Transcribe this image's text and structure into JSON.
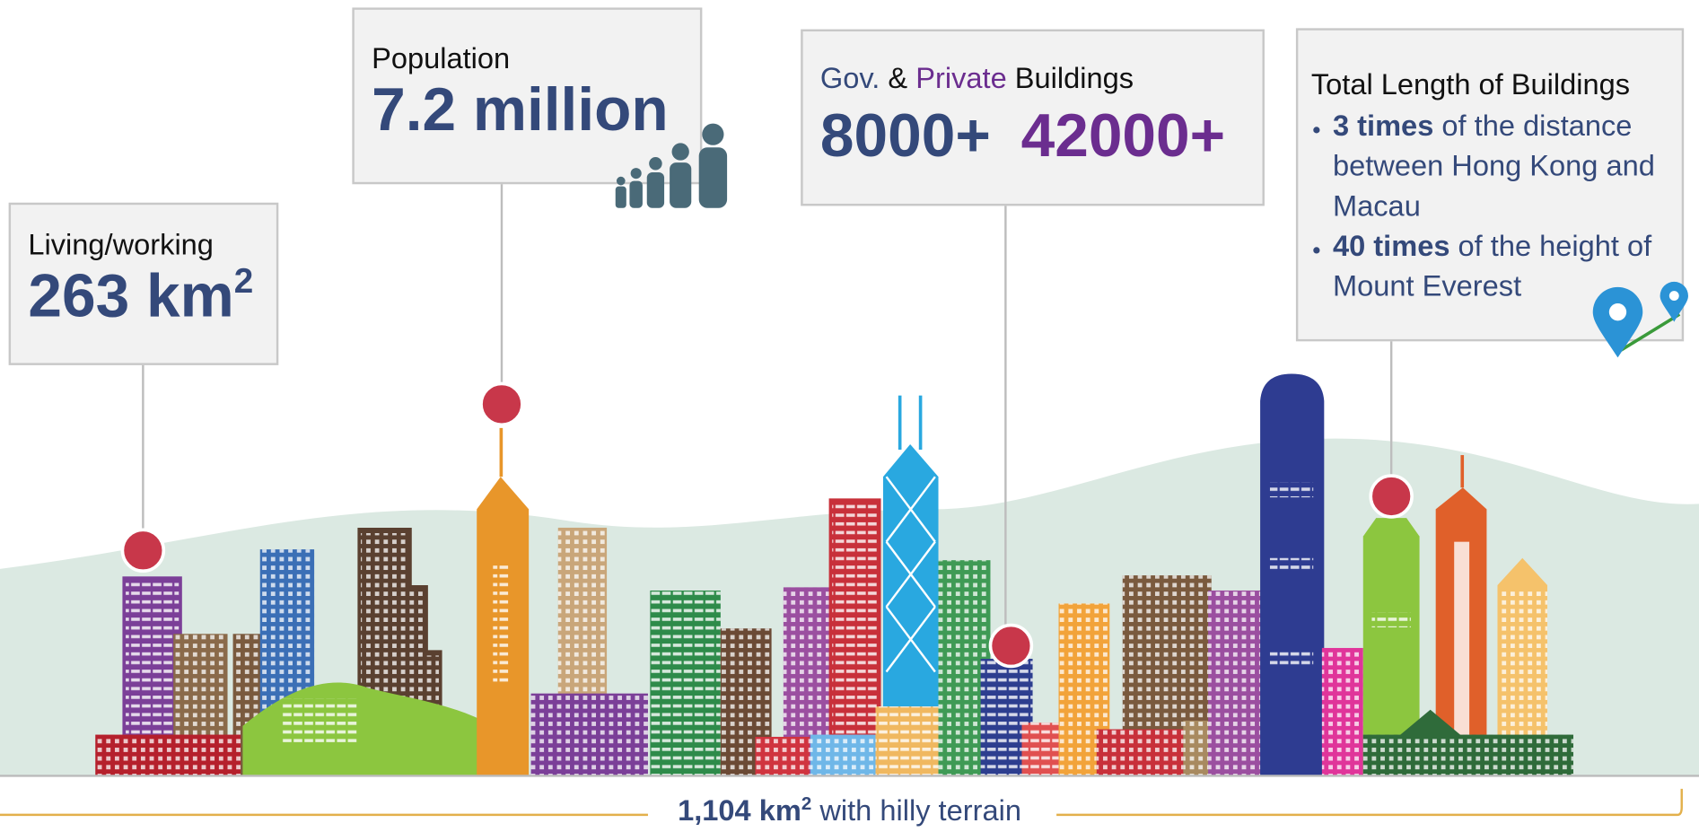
{
  "callouts": {
    "living": {
      "label": "Living/working",
      "value": "263 km",
      "sup": "2"
    },
    "population": {
      "label": "Population",
      "value": "7.2 million"
    },
    "buildings": {
      "gov": "Gov.",
      "amp": "&",
      "private": "Private",
      "suffix": "Buildings",
      "gov_count": "8000+",
      "private_count": "42000+"
    },
    "length": {
      "title": "Total Length of Buildings",
      "bullets": [
        {
          "bold": "3 times",
          "text": "of the distance between Hong Kong and Macau"
        },
        {
          "bold": "40 times",
          "text": "of the height of Mount Everest"
        }
      ]
    }
  },
  "footer": {
    "value": "1,104 km",
    "sup": "2",
    "text": "with hilly terrain"
  }
}
